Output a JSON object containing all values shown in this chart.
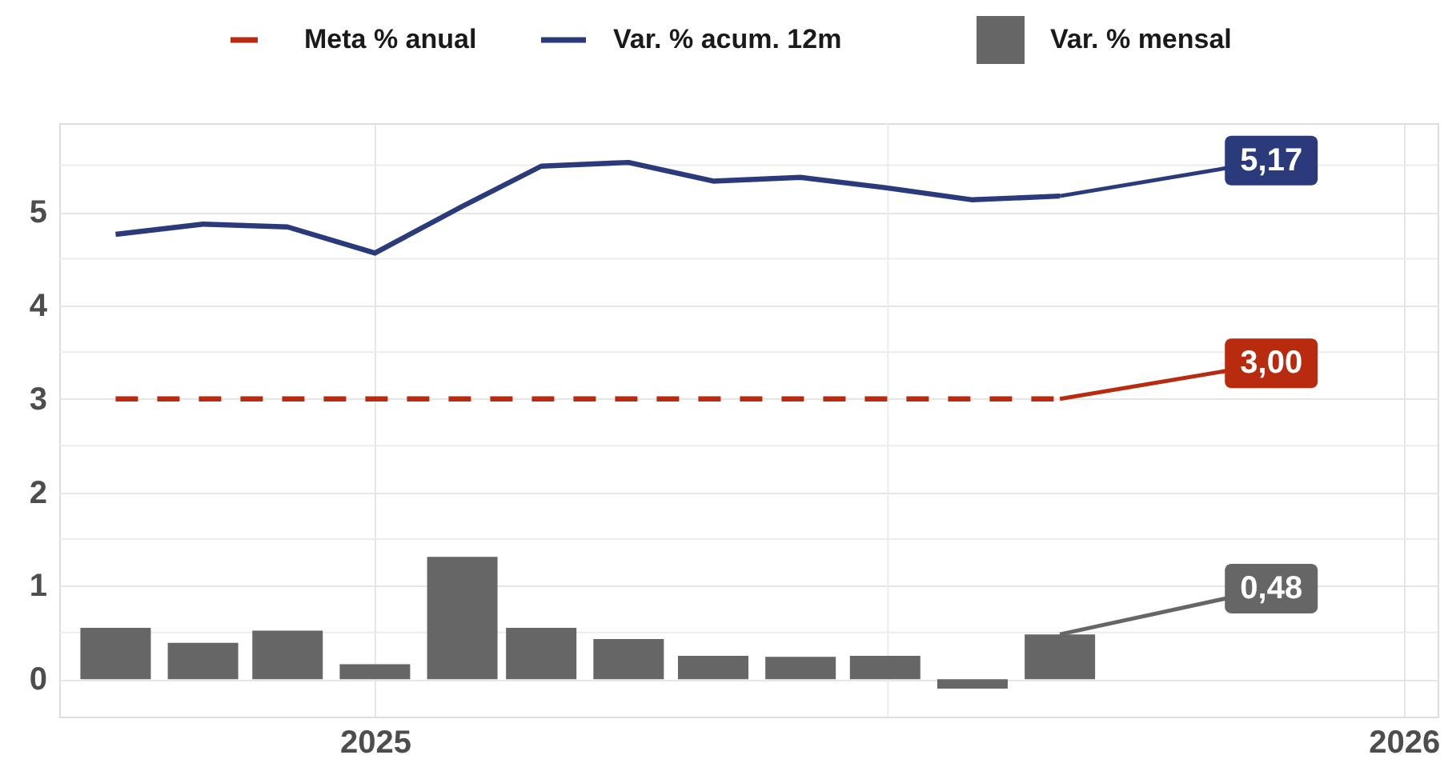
{
  "chart_data": {
    "type": "line",
    "x": [
      "2024-10-01",
      "2024-11-01",
      "2024-12-01",
      "2025-01-01",
      "2025-02-01",
      "2025-03-01",
      "2025-04-01",
      "2025-05-01",
      "2025-06-01",
      "2025-07-01",
      "2025-08-01",
      "2025-09-01"
    ],
    "series": [
      {
        "name": "Meta % anual",
        "line_style": "dashed",
        "color": "#b82b0e",
        "values": [
          3,
          3,
          3,
          3,
          3,
          3,
          3,
          3,
          3,
          3,
          3,
          3
        ]
      },
      {
        "name": "Var. % acum. 12m",
        "line_style": "solid",
        "color": "#2b3a7a",
        "values": [
          4.76,
          4.87,
          4.84,
          4.56,
          5.06,
          5.49,
          5.53,
          5.33,
          5.37,
          5.26,
          5.13,
          5.17
        ]
      },
      {
        "name": "Var. % mensal",
        "type": "bar",
        "color": "#666666",
        "values": [
          0.55,
          0.39,
          0.52,
          0.16,
          1.31,
          0.55,
          0.43,
          0.25,
          0.24,
          0.25,
          -0.1,
          0.48
        ]
      }
    ],
    "annotations": [
      {
        "text": "3,00",
        "x": "2025-09-01",
        "y": 3
      },
      {
        "text": "5,17",
        "x": "2025-09-01",
        "y": 5.17
      },
      {
        "text": "0,48",
        "x": "2025-09-01",
        "y": 0.48
      }
    ],
    "xlim": [
      "2024-09-11",
      "2026-01-13"
    ],
    "xticks": [
      {
        "value": "2025-01-01",
        "label": "2025"
      },
      {
        "value": "2025-07-02",
        "label": null
      },
      {
        "value": "2026-01-01",
        "label": "2026"
      }
    ],
    "ylim": [
      -0.4,
      5.95
    ],
    "yticks": [
      0,
      {
        "value": 0.5,
        "label": null
      },
      1,
      {
        "value": 1.5,
        "label": null
      },
      2,
      {
        "value": 2.5,
        "label": null
      },
      3,
      {
        "value": 3.5,
        "label": null
      },
      4,
      {
        "value": 4.5,
        "label": null
      },
      5,
      {
        "value": 5.5,
        "label": null
      }
    ],
    "grid": true,
    "legend": "top"
  }
}
